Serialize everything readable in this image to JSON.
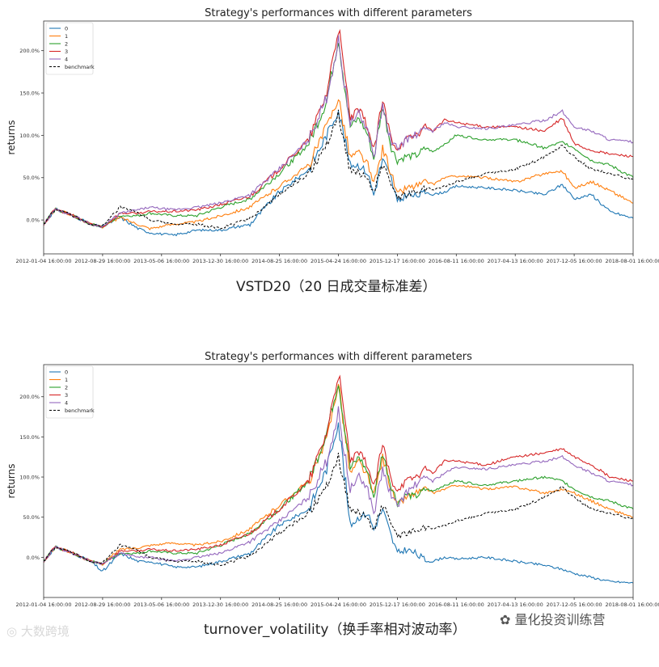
{
  "charts": [
    {
      "caption": "VSTD20（20 日成交量标准差）",
      "chart_data": {
        "type": "line",
        "title": "Strategy's performances with different parameters",
        "ylabel": "returns",
        "xlabel": "",
        "ylim": [
          -0.4,
          2.35
        ],
        "yticks": [
          0.0,
          0.5,
          1.0,
          1.5,
          2.0
        ],
        "ytick_labels": [
          "0.0%",
          "50.0%",
          "100.0%",
          "150.0%",
          "200.0%"
        ],
        "xtick_labels": [
          "2012-01-04 16:00:00",
          "2012-08-29 16:00:00",
          "2013-05-06 16:00:00",
          "2013-12-30 16:00:00",
          "2014-08-25 16:00:00",
          "2015-04-24 16:00:00",
          "2015-12-17 16:00:00",
          "2016-08-11 16:00:00",
          "2017-04-13 16:00:00",
          "2017-12-05 16:00:00",
          "2018-08-01 16:00:00"
        ],
        "legend_position": "top-left",
        "x": [
          0,
          0.2,
          0.5,
          0.8,
          1.0,
          1.3,
          1.6,
          1.8,
          2.2,
          2.6,
          3.0,
          3.5,
          4.0,
          4.5,
          4.8,
          5.0,
          5.2,
          5.35,
          5.5,
          5.6,
          5.75,
          5.9,
          6.0,
          6.15,
          6.3,
          6.5,
          6.6,
          6.8,
          7.0,
          7.5,
          8.0,
          8.5,
          8.8,
          9.0,
          9.3,
          9.6,
          10.0
        ],
        "series": [
          {
            "name": "0",
            "color": "#1f77b4",
            "style": "solid",
            "values": [
              -0.05,
              0.13,
              0.05,
              -0.05,
              -0.08,
              0.03,
              -0.1,
              -0.15,
              -0.18,
              -0.12,
              -0.12,
              -0.05,
              0.33,
              0.6,
              1.0,
              1.3,
              0.65,
              0.65,
              0.55,
              0.3,
              0.72,
              0.48,
              0.2,
              0.3,
              0.28,
              0.33,
              0.3,
              0.33,
              0.4,
              0.38,
              0.35,
              0.3,
              0.42,
              0.25,
              0.3,
              0.1,
              0.02
            ]
          },
          {
            "name": "1",
            "color": "#ff7f0e",
            "style": "solid",
            "values": [
              -0.05,
              0.13,
              0.05,
              -0.05,
              -0.08,
              0.03,
              -0.05,
              -0.1,
              -0.05,
              -0.02,
              0.05,
              0.15,
              0.4,
              0.65,
              1.1,
              1.45,
              0.75,
              0.8,
              0.65,
              0.4,
              0.85,
              0.55,
              0.3,
              0.38,
              0.4,
              0.45,
              0.42,
              0.5,
              0.52,
              0.5,
              0.45,
              0.55,
              0.58,
              0.38,
              0.45,
              0.35,
              0.2
            ]
          },
          {
            "name": "2",
            "color": "#2ca02c",
            "style": "solid",
            "values": [
              -0.05,
              0.13,
              0.05,
              -0.05,
              -0.08,
              0.05,
              0.05,
              0.08,
              0.05,
              0.05,
              0.15,
              0.25,
              0.55,
              0.9,
              1.4,
              2.15,
              1.1,
              1.2,
              1.0,
              0.72,
              1.35,
              0.85,
              0.7,
              0.75,
              0.75,
              0.85,
              0.8,
              0.9,
              1.0,
              0.95,
              0.95,
              0.85,
              0.92,
              0.85,
              0.7,
              0.65,
              0.5
            ]
          },
          {
            "name": "3",
            "color": "#d62728",
            "style": "solid",
            "values": [
              -0.05,
              0.13,
              0.05,
              -0.05,
              -0.08,
              0.08,
              0.08,
              0.1,
              0.1,
              0.12,
              0.18,
              0.28,
              0.6,
              0.95,
              1.5,
              2.28,
              1.2,
              1.3,
              1.1,
              0.8,
              1.4,
              0.95,
              0.85,
              0.95,
              1.0,
              1.1,
              1.05,
              1.18,
              1.15,
              1.1,
              1.1,
              1.05,
              1.2,
              0.9,
              0.82,
              0.78,
              0.75
            ]
          },
          {
            "name": "4",
            "color": "#9467bd",
            "style": "solid",
            "values": [
              -0.05,
              0.13,
              0.05,
              -0.05,
              -0.08,
              0.08,
              0.12,
              0.15,
              0.12,
              0.15,
              0.2,
              0.3,
              0.6,
              0.95,
              1.45,
              2.1,
              1.15,
              1.25,
              1.05,
              0.75,
              1.35,
              0.9,
              0.85,
              0.95,
              1.0,
              1.08,
              1.05,
              1.15,
              1.1,
              1.08,
              1.12,
              1.18,
              1.28,
              1.1,
              1.05,
              0.95,
              0.92
            ]
          },
          {
            "name": "benchmark",
            "color": "#000000",
            "style": "dashed",
            "values": [
              -0.05,
              0.13,
              0.05,
              -0.05,
              -0.08,
              0.15,
              0.08,
              0.0,
              -0.05,
              -0.05,
              -0.1,
              0.02,
              0.3,
              0.55,
              0.9,
              1.25,
              0.6,
              0.55,
              0.5,
              0.3,
              0.65,
              0.45,
              0.25,
              0.3,
              0.32,
              0.38,
              0.35,
              0.4,
              0.45,
              0.55,
              0.6,
              0.75,
              0.88,
              0.75,
              0.6,
              0.55,
              0.48
            ]
          }
        ]
      }
    },
    {
      "caption": "turnover_volatility（换手率相对波动率）",
      "chart_data": {
        "type": "line",
        "title": "Strategy's performances with different parameters",
        "ylabel": "returns",
        "xlabel": "",
        "ylim": [
          -0.5,
          2.4
        ],
        "yticks": [
          0.0,
          0.5,
          1.0,
          1.5,
          2.0
        ],
        "ytick_labels": [
          "0.0%",
          "50.0%",
          "100.0%",
          "150.0%",
          "200.0%"
        ],
        "xtick_labels": [
          "2012-01-04 16:00:00",
          "2012-08-29 16:00:00",
          "2013-05-06 16:00:00",
          "2013-12-30 16:00:00",
          "2014-08-25 16:00:00",
          "2015-04-24 16:00:00",
          "2015-12-17 16:00:00",
          "2016-08-11 16:00:00",
          "2017-04-13 16:00:00",
          "2017-12-05 16:00:00",
          "2018-08-01 16:00:00"
        ],
        "legend_position": "top-left",
        "x": [
          0,
          0.2,
          0.5,
          0.8,
          1.0,
          1.3,
          1.6,
          1.8,
          2.2,
          2.6,
          3.0,
          3.5,
          4.0,
          4.5,
          4.8,
          5.0,
          5.2,
          5.35,
          5.5,
          5.6,
          5.75,
          5.9,
          6.0,
          6.15,
          6.3,
          6.5,
          6.6,
          6.8,
          7.0,
          7.5,
          8.0,
          8.5,
          8.8,
          9.0,
          9.3,
          9.6,
          10.0
        ],
        "series": [
          {
            "name": "0",
            "color": "#1f77b4",
            "style": "solid",
            "values": [
              -0.05,
              0.13,
              0.05,
              -0.05,
              -0.18,
              0.05,
              -0.05,
              -0.05,
              -0.12,
              -0.12,
              -0.05,
              0.05,
              0.4,
              0.6,
              1.1,
              1.7,
              0.4,
              0.5,
              0.55,
              0.35,
              0.6,
              0.25,
              0.05,
              0.1,
              0.05,
              -0.05,
              -0.05,
              0.0,
              -0.02,
              0.0,
              -0.05,
              -0.1,
              -0.15,
              -0.2,
              -0.25,
              -0.3,
              -0.32
            ]
          },
          {
            "name": "1",
            "color": "#ff7f0e",
            "style": "solid",
            "values": [
              -0.05,
              0.13,
              0.05,
              -0.05,
              -0.08,
              0.1,
              0.12,
              0.15,
              0.18,
              0.15,
              0.2,
              0.35,
              0.65,
              0.95,
              1.45,
              2.2,
              1.05,
              1.2,
              1.0,
              0.75,
              1.25,
              0.85,
              0.65,
              0.75,
              0.8,
              0.85,
              0.8,
              0.85,
              0.9,
              0.85,
              0.88,
              0.8,
              0.85,
              0.8,
              0.7,
              0.6,
              0.5
            ]
          },
          {
            "name": "2",
            "color": "#2ca02c",
            "style": "solid",
            "values": [
              -0.05,
              0.13,
              0.05,
              -0.05,
              -0.08,
              0.05,
              0.05,
              0.08,
              0.05,
              0.05,
              0.15,
              0.3,
              0.6,
              0.95,
              1.55,
              2.2,
              1.1,
              1.25,
              1.05,
              0.75,
              1.3,
              0.88,
              0.68,
              0.78,
              0.75,
              0.85,
              0.82,
              0.9,
              0.95,
              0.9,
              0.95,
              1.0,
              0.95,
              0.85,
              0.75,
              0.7,
              0.6
            ]
          },
          {
            "name": "3",
            "color": "#d62728",
            "style": "solid",
            "values": [
              -0.05,
              0.13,
              0.05,
              -0.05,
              -0.08,
              0.08,
              0.08,
              0.1,
              0.08,
              0.1,
              0.15,
              0.3,
              0.6,
              0.95,
              1.55,
              2.3,
              1.2,
              1.3,
              1.15,
              0.85,
              1.4,
              0.95,
              0.85,
              0.95,
              1.0,
              1.1,
              1.05,
              1.2,
              1.2,
              1.15,
              1.25,
              1.3,
              1.35,
              1.25,
              1.15,
              1.0,
              0.95
            ]
          },
          {
            "name": "4",
            "color": "#9467bd",
            "style": "solid",
            "values": [
              -0.05,
              0.13,
              0.05,
              -0.05,
              -0.08,
              0.05,
              0.0,
              0.0,
              -0.05,
              0.0,
              0.05,
              0.2,
              0.45,
              0.75,
              1.2,
              1.8,
              0.85,
              1.0,
              0.85,
              0.55,
              1.1,
              0.75,
              0.65,
              0.8,
              0.9,
              1.0,
              0.95,
              1.05,
              1.12,
              1.1,
              1.15,
              1.2,
              1.25,
              1.15,
              1.05,
              0.95,
              0.9
            ]
          },
          {
            "name": "benchmark",
            "color": "#000000",
            "style": "dashed",
            "values": [
              -0.05,
              0.13,
              0.05,
              -0.05,
              -0.08,
              0.15,
              0.08,
              0.0,
              -0.05,
              -0.05,
              -0.1,
              0.02,
              0.3,
              0.55,
              0.9,
              1.25,
              0.6,
              0.55,
              0.5,
              0.3,
              0.65,
              0.45,
              0.25,
              0.3,
              0.32,
              0.38,
              0.35,
              0.4,
              0.45,
              0.55,
              0.6,
              0.75,
              0.88,
              0.75,
              0.6,
              0.55,
              0.48
            ]
          }
        ]
      }
    }
  ],
  "watermark_left": "大数跨境",
  "watermark_right": "量化投资训练营",
  "icons": {
    "watermark_left": "eye-icon",
    "watermark_right": "wechat-icon"
  }
}
